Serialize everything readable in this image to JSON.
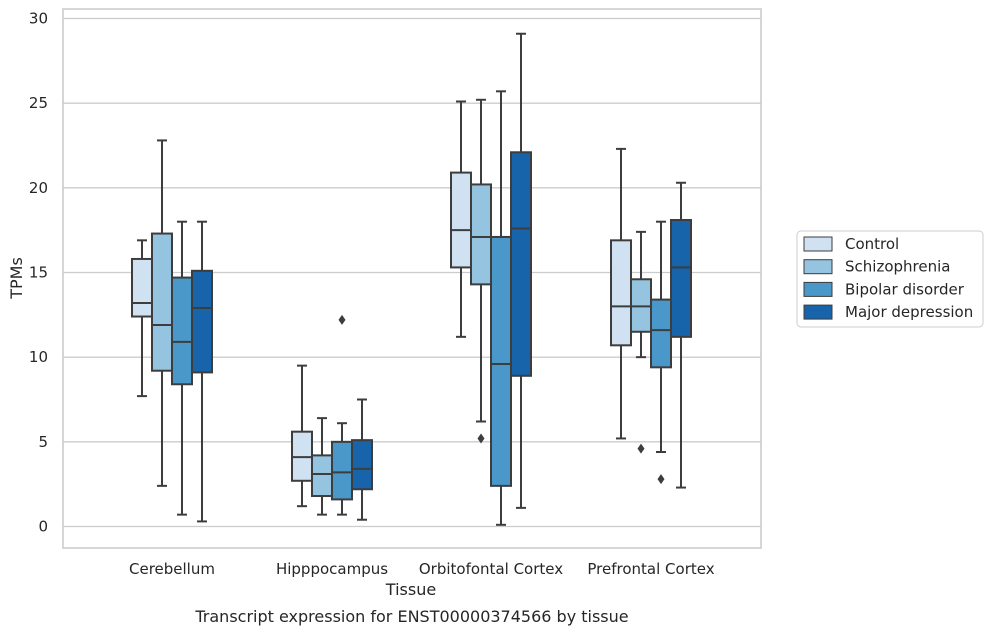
{
  "chart_data": {
    "type": "box",
    "caption": "Transcript expression for ENST00000374566 by tissue",
    "xlabel": "Tissue",
    "ylabel": "TPMs",
    "ylim": [
      -1.2,
      30.5
    ],
    "yticks": [
      0,
      5,
      10,
      15,
      20,
      25,
      30
    ],
    "grid": true,
    "legend_position": "right",
    "categories": [
      "Cerebellum",
      "Hipppocampus",
      "Orbitofontal Cortex",
      "Prefrontal Cortex"
    ],
    "series": [
      {
        "name": "Control",
        "color": "#d0e1f2",
        "boxes": [
          {
            "whislo": 7.7,
            "q1": 12.4,
            "med": 13.2,
            "q3": 15.8,
            "whishi": 16.9,
            "fliers": []
          },
          {
            "whislo": 1.2,
            "q1": 2.7,
            "med": 4.1,
            "q3": 5.6,
            "whishi": 9.5,
            "fliers": []
          },
          {
            "whislo": 11.2,
            "q1": 15.3,
            "med": 17.5,
            "q3": 20.9,
            "whishi": 25.1,
            "fliers": []
          },
          {
            "whislo": 5.2,
            "q1": 10.7,
            "med": 13.0,
            "q3": 16.9,
            "whishi": 22.3,
            "fliers": []
          }
        ]
      },
      {
        "name": "Schizophrenia",
        "color": "#94c4df",
        "boxes": [
          {
            "whislo": 2.4,
            "q1": 9.2,
            "med": 11.9,
            "q3": 17.3,
            "whishi": 22.8,
            "fliers": []
          },
          {
            "whislo": 0.7,
            "q1": 1.8,
            "med": 3.1,
            "q3": 4.2,
            "whishi": 6.4,
            "fliers": []
          },
          {
            "whislo": 6.2,
            "q1": 14.3,
            "med": 17.1,
            "q3": 20.2,
            "whishi": 25.2,
            "fliers": [
              5.2
            ]
          },
          {
            "whislo": 10.0,
            "q1": 11.5,
            "med": 13.0,
            "q3": 14.6,
            "whishi": 17.4,
            "fliers": [
              4.6
            ]
          }
        ]
      },
      {
        "name": "Bipolar disorder",
        "color": "#4a98c9",
        "boxes": [
          {
            "whislo": 0.7,
            "q1": 8.4,
            "med": 10.9,
            "q3": 14.7,
            "whishi": 18.0,
            "fliers": []
          },
          {
            "whislo": 0.7,
            "q1": 1.6,
            "med": 3.2,
            "q3": 5.0,
            "whishi": 6.1,
            "fliers": [
              12.2
            ]
          },
          {
            "whislo": 0.1,
            "q1": 2.4,
            "med": 9.6,
            "q3": 17.1,
            "whishi": 25.7,
            "fliers": []
          },
          {
            "whislo": 4.4,
            "q1": 9.4,
            "med": 11.6,
            "q3": 13.4,
            "whishi": 18.0,
            "fliers": [
              2.8
            ]
          }
        ]
      },
      {
        "name": "Major depression",
        "color": "#1764ab",
        "boxes": [
          {
            "whislo": 0.3,
            "q1": 9.1,
            "med": 12.9,
            "q3": 15.1,
            "whishi": 18.0,
            "fliers": []
          },
          {
            "whislo": 0.4,
            "q1": 2.2,
            "med": 3.4,
            "q3": 5.1,
            "whishi": 7.5,
            "fliers": []
          },
          {
            "whislo": 1.1,
            "q1": 8.9,
            "med": 17.6,
            "q3": 22.1,
            "whishi": 29.1,
            "fliers": []
          },
          {
            "whislo": 2.3,
            "q1": 11.2,
            "med": 15.3,
            "q3": 18.1,
            "whishi": 20.3,
            "fliers": []
          }
        ]
      }
    ]
  }
}
